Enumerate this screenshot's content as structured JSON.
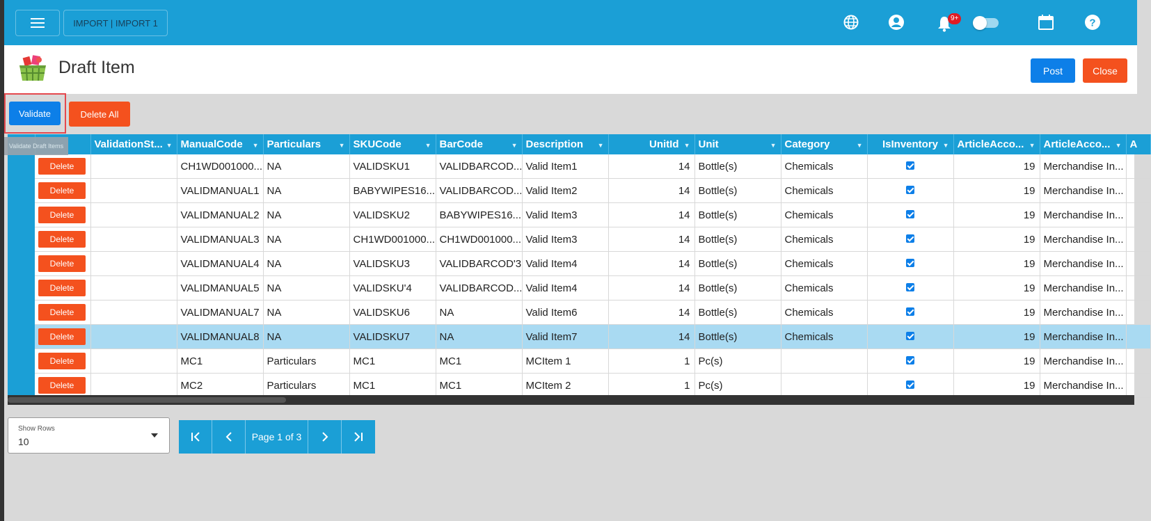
{
  "topbar": {
    "breadcrumb": "IMPORT | IMPORT 1",
    "notification_badge": "9+"
  },
  "header": {
    "title": "Draft Item",
    "post_label": "Post",
    "close_label": "Close"
  },
  "toolbar": {
    "validate_label": "Validate",
    "validate_tooltip": "Validate Draft Items",
    "delete_all_label": "Delete All"
  },
  "grid": {
    "columns": [
      "ValidationSt...",
      "ManualCode",
      "Particulars",
      "SKUCode",
      "BarCode",
      "Description",
      "UnitId",
      "Unit",
      "Category",
      "IsInventory",
      "ArticleAcco...",
      "ArticleAcco...",
      "A"
    ],
    "delete_label": "Delete",
    "rows": [
      {
        "manual": "CH1WD001000...",
        "particulars": "NA",
        "sku": "VALIDSKU1",
        "barcode": "VALIDBARCOD...",
        "description": "Valid Item1",
        "unitid": "14",
        "unit": "Bottle(s)",
        "category": "Chemicals",
        "inventory": true,
        "acc1": "19",
        "acc2": "Merchandise In..."
      },
      {
        "manual": "VALIDMANUAL1",
        "particulars": "NA",
        "sku": "BABYWIPES16...",
        "barcode": "VALIDBARCOD...",
        "description": "Valid Item2",
        "unitid": "14",
        "unit": "Bottle(s)",
        "category": "Chemicals",
        "inventory": true,
        "acc1": "19",
        "acc2": "Merchandise In..."
      },
      {
        "manual": "VALIDMANUAL2",
        "particulars": "NA",
        "sku": "VALIDSKU2",
        "barcode": "BABYWIPES16...",
        "description": "Valid Item3",
        "unitid": "14",
        "unit": "Bottle(s)",
        "category": "Chemicals",
        "inventory": true,
        "acc1": "19",
        "acc2": "Merchandise In..."
      },
      {
        "manual": "VALIDMANUAL3",
        "particulars": "NA",
        "sku": "CH1WD001000...",
        "barcode": "CH1WD001000...",
        "description": "Valid Item3",
        "unitid": "14",
        "unit": "Bottle(s)",
        "category": "Chemicals",
        "inventory": true,
        "acc1": "19",
        "acc2": "Merchandise In..."
      },
      {
        "manual": "VALIDMANUAL4",
        "particulars": "NA",
        "sku": "VALIDSKU3",
        "barcode": "VALIDBARCOD'3",
        "description": "Valid Item4",
        "unitid": "14",
        "unit": "Bottle(s)",
        "category": "Chemicals",
        "inventory": true,
        "acc1": "19",
        "acc2": "Merchandise In..."
      },
      {
        "manual": "VALIDMANUAL5",
        "particulars": "NA",
        "sku": "VALIDSKU'4",
        "barcode": "VALIDBARCOD...",
        "description": "Valid Item4",
        "unitid": "14",
        "unit": "Bottle(s)",
        "category": "Chemicals",
        "inventory": true,
        "acc1": "19",
        "acc2": "Merchandise In..."
      },
      {
        "manual": "VALIDMANUAL7",
        "particulars": "NA",
        "sku": "VALIDSKU6",
        "barcode": "NA",
        "description": "Valid Item6",
        "unitid": "14",
        "unit": "Bottle(s)",
        "category": "Chemicals",
        "inventory": true,
        "acc1": "19",
        "acc2": "Merchandise In..."
      },
      {
        "manual": "VALIDMANUAL8",
        "particulars": "NA",
        "sku": "VALIDSKU7",
        "barcode": "NA",
        "description": "Valid Item7",
        "unitid": "14",
        "unit": "Bottle(s)",
        "category": "Chemicals",
        "inventory": true,
        "acc1": "19",
        "acc2": "Merchandise In..."
      },
      {
        "manual": "MC1",
        "particulars": "Particulars",
        "sku": "MC1",
        "barcode": "MC1",
        "description": "MCItem 1",
        "unitid": "1",
        "unit": "Pc(s)",
        "category": "",
        "inventory": true,
        "acc1": "19",
        "acc2": "Merchandise In..."
      },
      {
        "manual": "MC2",
        "particulars": "Particulars",
        "sku": "MC1",
        "barcode": "MC1",
        "description": "MCItem 2",
        "unitid": "1",
        "unit": "Pc(s)",
        "category": "",
        "inventory": true,
        "acc1": "19",
        "acc2": "Merchandise In..."
      }
    ]
  },
  "footer": {
    "show_rows_label": "Show Rows",
    "show_rows_value": "10",
    "page_text": "Page 1 of 3"
  },
  "colors": {
    "brand": "#1b9fd6",
    "primary_button": "#0d7fe8",
    "danger_button": "#f4511e",
    "highlight_row": "#a9daf2"
  },
  "icons": [
    "menu-icon",
    "globe-icon",
    "account-icon",
    "bell-icon",
    "moon-icon",
    "calendar-icon",
    "help-icon",
    "basket-logo-icon",
    "filter-icon",
    "first-page-icon",
    "prev-page-icon",
    "next-page-icon",
    "last-page-icon"
  ]
}
